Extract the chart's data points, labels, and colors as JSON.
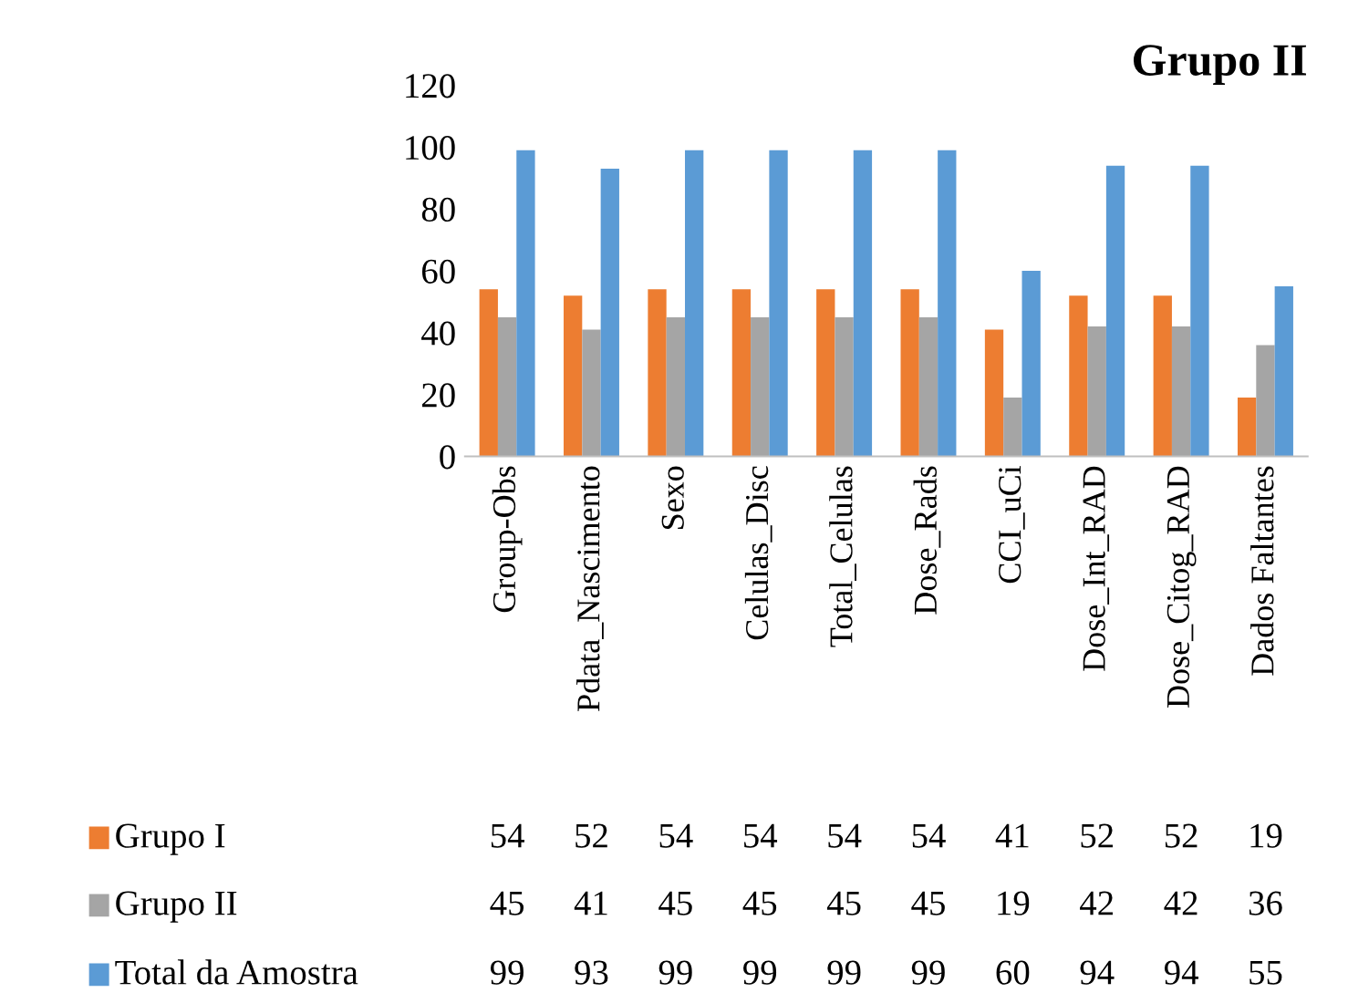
{
  "chart_data": {
    "type": "bar",
    "title": "Grupo II",
    "categories": [
      "Group-Obs",
      "Pdata_Nascimento",
      "Sexo",
      "Celulas_Disc",
      "Total_Celulas",
      "Dose_Rads",
      "CCI_uCi",
      "Dose_Int_RAD",
      "Dose_Citog_RAD",
      "Dados Faltantes"
    ],
    "series": [
      {
        "name": "Grupo I",
        "color": "#ed7d31",
        "values": [
          54,
          52,
          54,
          54,
          54,
          54,
          41,
          52,
          52,
          19
        ]
      },
      {
        "name": "Grupo II",
        "color": "#a5a5a5",
        "values": [
          45,
          41,
          45,
          45,
          45,
          45,
          19,
          42,
          42,
          36
        ]
      },
      {
        "name": "Total da Amostra",
        "color": "#5b9bd5",
        "values": [
          99,
          93,
          99,
          99,
          99,
          99,
          60,
          94,
          94,
          55
        ]
      }
    ],
    "ylim": [
      0,
      120
    ],
    "yticks": [
      0,
      20,
      40,
      60,
      80,
      100,
      120
    ],
    "grid": false,
    "legend": "bottom",
    "data_labels": true
  }
}
